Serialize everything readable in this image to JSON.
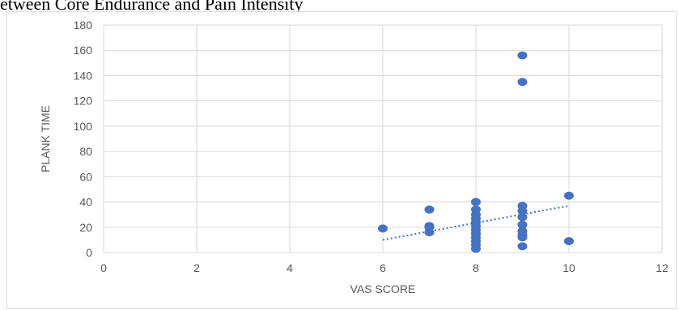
{
  "chart_data": {
    "type": "scatter",
    "title": "etween Core Endurance and Pain Intensity",
    "xlabel": "VAS SCORE",
    "ylabel": "PLANK TIME",
    "xlim": [
      0,
      12
    ],
    "ylim": [
      0,
      180
    ],
    "x_ticks": [
      0,
      2,
      4,
      6,
      8,
      10,
      12
    ],
    "y_ticks": [
      0,
      20,
      40,
      60,
      80,
      100,
      120,
      140,
      160,
      180
    ],
    "grid": true,
    "legend": "none",
    "colors": {
      "marker": "#4472C4",
      "trendline": "#4472C4",
      "grid": "#d9d9d9"
    },
    "series": [
      {
        "points": [
          [
            6,
            19
          ],
          [
            7,
            34
          ],
          [
            7,
            21
          ],
          [
            7,
            20
          ],
          [
            7,
            16
          ],
          [
            8,
            40
          ],
          [
            8,
            34
          ],
          [
            8,
            30
          ],
          [
            8,
            27
          ],
          [
            8,
            24
          ],
          [
            8,
            21
          ],
          [
            8,
            18
          ],
          [
            8,
            15
          ],
          [
            8,
            12
          ],
          [
            8,
            9
          ],
          [
            8,
            6
          ],
          [
            8,
            3
          ],
          [
            9,
            156
          ],
          [
            9,
            135
          ],
          [
            9,
            37
          ],
          [
            9,
            33
          ],
          [
            9,
            28
          ],
          [
            9,
            22
          ],
          [
            9,
            17
          ],
          [
            9,
            14
          ],
          [
            9,
            12
          ],
          [
            9,
            5
          ],
          [
            10,
            45
          ],
          [
            10,
            9
          ]
        ]
      }
    ],
    "trendline": {
      "type": "linear",
      "dashed": true,
      "x_range": [
        6,
        10
      ],
      "y_at_start": 10,
      "y_at_end": 37
    }
  }
}
